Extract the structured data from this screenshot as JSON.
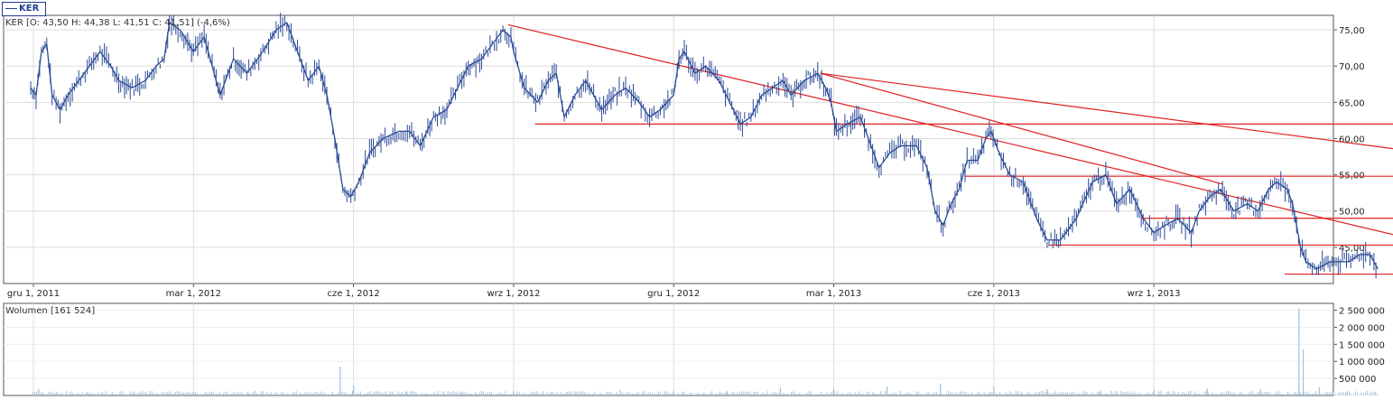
{
  "legend": {
    "symbol": "KER"
  },
  "price_info": "KER [O: 43,50  H: 44,38  L: 41,51  C: 41,51] (-4,6%)",
  "volume_info": "Wolumen [161 524]",
  "colors": {
    "price": "#2b4a96",
    "trend": "#e02020",
    "grid": "#dddddd",
    "frame": "#555555",
    "volume": "#9fc1dc"
  },
  "chart_data": [
    {
      "type": "line",
      "title": "",
      "ylim": [
        40,
        77
      ],
      "y_ticks": [
        {
          "v": 45,
          "l": "45,00"
        },
        {
          "v": 50,
          "l": "50,00"
        },
        {
          "v": 55,
          "l": "55,00"
        },
        {
          "v": 60,
          "l": "60,00"
        },
        {
          "v": 65,
          "l": "65,00"
        },
        {
          "v": 70,
          "l": "70,00"
        },
        {
          "v": 75,
          "l": "75,00"
        }
      ],
      "x_ticks": [
        {
          "m": 0,
          "l": "gru 1, 2011"
        },
        {
          "m": 3,
          "l": "mar 1, 2012"
        },
        {
          "m": 6,
          "l": "cze 1, 2012"
        },
        {
          "m": 9,
          "l": "wrz 1, 2012"
        },
        {
          "m": 12,
          "l": "gru 1, 2012"
        },
        {
          "m": 15,
          "l": "mar 1, 2013"
        },
        {
          "m": 18,
          "l": "cze 1, 2013"
        },
        {
          "m": 21,
          "l": "wrz 1, 2013"
        }
      ],
      "x_unit": "months since gru 1, 2011",
      "series_points": [
        [
          -0.05,
          67
        ],
        [
          0.05,
          66
        ],
        [
          0.15,
          72
        ],
        [
          0.25,
          73
        ],
        [
          0.35,
          66
        ],
        [
          0.5,
          64
        ],
        [
          0.65,
          66
        ],
        [
          0.85,
          68
        ],
        [
          1.05,
          70
        ],
        [
          1.25,
          72
        ],
        [
          1.45,
          70
        ],
        [
          1.6,
          68
        ],
        [
          1.85,
          67
        ],
        [
          2.1,
          68
        ],
        [
          2.3,
          70
        ],
        [
          2.45,
          71
        ],
        [
          2.55,
          76
        ],
        [
          2.75,
          75
        ],
        [
          3.0,
          72
        ],
        [
          3.2,
          74
        ],
        [
          3.35,
          70
        ],
        [
          3.5,
          66
        ],
        [
          3.75,
          71
        ],
        [
          4.0,
          69
        ],
        [
          4.3,
          72
        ],
        [
          4.55,
          75
        ],
        [
          4.75,
          76
        ],
        [
          4.95,
          72
        ],
        [
          5.15,
          68
        ],
        [
          5.35,
          70
        ],
        [
          5.5,
          66
        ],
        [
          5.65,
          60
        ],
        [
          5.8,
          53
        ],
        [
          5.95,
          52
        ],
        [
          6.1,
          54
        ],
        [
          6.3,
          58
        ],
        [
          6.55,
          60
        ],
        [
          6.85,
          61
        ],
        [
          7.05,
          61
        ],
        [
          7.25,
          59
        ],
        [
          7.5,
          63
        ],
        [
          7.75,
          64
        ],
        [
          7.95,
          67
        ],
        [
          8.15,
          70
        ],
        [
          8.4,
          71
        ],
        [
          8.6,
          73
        ],
        [
          8.8,
          75
        ],
        [
          8.95,
          74
        ],
        [
          9.0,
          72
        ],
        [
          9.2,
          67
        ],
        [
          9.45,
          65
        ],
        [
          9.65,
          68
        ],
        [
          9.8,
          69
        ],
        [
          9.95,
          63
        ],
        [
          10.15,
          66
        ],
        [
          10.35,
          68
        ],
        [
          10.65,
          64
        ],
        [
          10.9,
          66
        ],
        [
          11.1,
          67
        ],
        [
          11.35,
          65
        ],
        [
          11.55,
          63
        ],
        [
          11.75,
          64
        ],
        [
          12.0,
          66
        ],
        [
          12.1,
          71
        ],
        [
          12.2,
          72
        ],
        [
          12.4,
          69
        ],
        [
          12.6,
          70
        ],
        [
          12.85,
          68
        ],
        [
          13.05,
          65
        ],
        [
          13.25,
          62
        ],
        [
          13.45,
          63
        ],
        [
          13.65,
          66
        ],
        [
          13.85,
          67
        ],
        [
          14.05,
          68
        ],
        [
          14.2,
          66
        ],
        [
          14.45,
          68
        ],
        [
          14.7,
          69
        ],
        [
          14.85,
          67
        ],
        [
          14.95,
          65
        ],
        [
          15.05,
          61
        ],
        [
          15.25,
          62
        ],
        [
          15.5,
          63
        ],
        [
          15.65,
          60
        ],
        [
          15.85,
          56
        ],
        [
          16.05,
          58
        ],
        [
          16.25,
          59
        ],
        [
          16.55,
          59
        ],
        [
          16.75,
          56
        ],
        [
          16.9,
          50
        ],
        [
          17.05,
          48
        ],
        [
          17.2,
          51
        ],
        [
          17.35,
          53
        ],
        [
          17.5,
          57
        ],
        [
          17.7,
          57
        ],
        [
          17.85,
          60
        ],
        [
          17.95,
          61
        ],
        [
          18.1,
          58
        ],
        [
          18.3,
          55
        ],
        [
          18.55,
          54
        ],
        [
          18.8,
          49
        ],
        [
          19.0,
          46
        ],
        [
          19.25,
          46
        ],
        [
          19.55,
          49
        ],
        [
          19.85,
          54
        ],
        [
          20.1,
          55
        ],
        [
          20.3,
          51
        ],
        [
          20.55,
          53
        ],
        [
          20.8,
          49
        ],
        [
          21.0,
          47
        ],
        [
          21.2,
          48
        ],
        [
          21.45,
          49
        ],
        [
          21.7,
          47
        ],
        [
          21.85,
          50
        ],
        [
          22.05,
          52
        ],
        [
          22.25,
          53
        ],
        [
          22.5,
          50
        ],
        [
          22.75,
          51
        ],
        [
          22.95,
          50
        ],
        [
          23.15,
          53
        ],
        [
          23.3,
          54
        ],
        [
          23.5,
          53
        ],
        [
          23.6,
          51
        ],
        [
          23.75,
          45
        ],
        [
          23.85,
          43
        ],
        [
          24.05,
          42
        ],
        [
          24.3,
          43
        ],
        [
          24.65,
          43
        ],
        [
          24.85,
          44
        ],
        [
          25.05,
          44
        ],
        [
          25.2,
          42
        ]
      ]
    },
    {
      "type": "bar",
      "title": "",
      "ylim": [
        0,
        2700000
      ],
      "y_ticks": [
        {
          "v": 500000,
          "l": "500 000"
        },
        {
          "v": 1000000,
          "l": "1 000 000"
        },
        {
          "v": 1500000,
          "l": "1 500 000"
        },
        {
          "v": 2000000,
          "l": "2 000 000"
        },
        {
          "v": 2500000,
          "l": "2 500 000"
        }
      ],
      "spikes": [
        [
          0.1,
          180000
        ],
        [
          1.0,
          90000
        ],
        [
          2.0,
          70000
        ],
        [
          3.0,
          90000
        ],
        [
          4.0,
          60000
        ],
        [
          5.0,
          70000
        ],
        [
          5.75,
          850000
        ],
        [
          6.0,
          300000
        ],
        [
          7.0,
          120000
        ],
        [
          8.0,
          90000
        ],
        [
          9.0,
          80000
        ],
        [
          10.0,
          110000
        ],
        [
          11.0,
          160000
        ],
        [
          12.0,
          130000
        ],
        [
          13.0,
          140000
        ],
        [
          14.0,
          230000
        ],
        [
          15.0,
          200000
        ],
        [
          16.0,
          260000
        ],
        [
          17.0,
          350000
        ],
        [
          18.0,
          270000
        ],
        [
          19.0,
          180000
        ],
        [
          20.0,
          150000
        ],
        [
          21.0,
          160000
        ],
        [
          22.0,
          210000
        ],
        [
          23.0,
          190000
        ],
        [
          23.72,
          2550000
        ],
        [
          23.8,
          1350000
        ],
        [
          24.1,
          250000
        ],
        [
          24.6,
          90000
        ]
      ],
      "typical": 90000
    }
  ],
  "trendlines": [
    {
      "from": [
        8.9,
        75.7
      ],
      "to": [
        25.8,
        46.2
      ]
    },
    {
      "from": [
        14.75,
        69
      ],
      "to": [
        25.8,
        58.3
      ]
    },
    {
      "from": [
        14.75,
        69
      ],
      "to": [
        22.3,
        53.7
      ]
    }
  ],
  "levels": [
    {
      "y": 62.0,
      "x0": 9.4,
      "x1": 25.7
    },
    {
      "y": 54.8,
      "x0": 17.45,
      "x1": 25.7
    },
    {
      "y": 49.0,
      "x0": 20.75,
      "x1": 25.7
    },
    {
      "y": 45.3,
      "x0": 19.05,
      "x1": 25.7
    },
    {
      "y": 41.3,
      "x0": 23.45,
      "x1": 25.7
    }
  ]
}
